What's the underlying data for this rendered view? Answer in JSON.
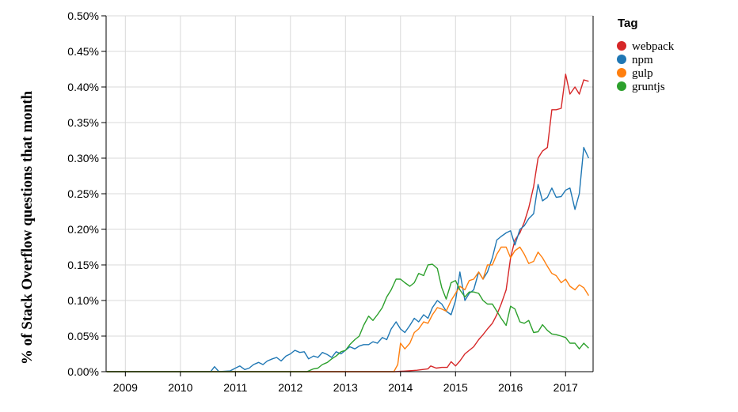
{
  "chart_data": {
    "type": "line",
    "ylabel": "% of Stack Overflow questions that month",
    "xlabel": "",
    "title": "",
    "legend_title": "Tag",
    "legend_position": "top-right",
    "grid": true,
    "xlim": [
      2008.65,
      2017.5
    ],
    "ylim": [
      0,
      0.5
    ],
    "x_ticks": [
      2009,
      2010,
      2011,
      2012,
      2013,
      2014,
      2015,
      2016,
      2017
    ],
    "x_tick_labels": [
      "2009",
      "2010",
      "2011",
      "2012",
      "2013",
      "2014",
      "2015",
      "2016",
      "2017"
    ],
    "y_ticks": [
      0,
      0.05,
      0.1,
      0.15,
      0.2,
      0.25,
      0.3,
      0.35,
      0.4,
      0.45,
      0.5
    ],
    "y_tick_labels": [
      "0.00%",
      "0.05%",
      "0.10%",
      "0.15%",
      "0.20%",
      "0.25%",
      "0.30%",
      "0.35%",
      "0.40%",
      "0.45%",
      "0.50%"
    ],
    "series": [
      {
        "name": "webpack",
        "color": "#d62728",
        "points": [
          [
            2008.66,
            0
          ],
          [
            2013.9,
            0
          ],
          [
            2014.3,
            0.002
          ],
          [
            2014.5,
            0.004
          ],
          [
            2014.55,
            0.008
          ],
          [
            2014.65,
            0.005
          ],
          [
            2014.75,
            0.006
          ],
          [
            2014.85,
            0.006
          ],
          [
            2014.92,
            0.014
          ],
          [
            2015.0,
            0.008
          ],
          [
            2015.08,
            0.015
          ],
          [
            2015.17,
            0.025
          ],
          [
            2015.25,
            0.03
          ],
          [
            2015.33,
            0.035
          ],
          [
            2015.42,
            0.045
          ],
          [
            2015.5,
            0.052
          ],
          [
            2015.58,
            0.06
          ],
          [
            2015.67,
            0.068
          ],
          [
            2015.75,
            0.08
          ],
          [
            2015.83,
            0.095
          ],
          [
            2015.92,
            0.115
          ],
          [
            2016.0,
            0.16
          ],
          [
            2016.08,
            0.185
          ],
          [
            2016.17,
            0.195
          ],
          [
            2016.25,
            0.21
          ],
          [
            2016.33,
            0.23
          ],
          [
            2016.42,
            0.26
          ],
          [
            2016.5,
            0.3
          ],
          [
            2016.58,
            0.31
          ],
          [
            2016.67,
            0.315
          ],
          [
            2016.75,
            0.368
          ],
          [
            2016.83,
            0.368
          ],
          [
            2016.92,
            0.37
          ],
          [
            2017.0,
            0.418
          ],
          [
            2017.08,
            0.39
          ],
          [
            2017.17,
            0.4
          ],
          [
            2017.25,
            0.39
          ],
          [
            2017.33,
            0.41
          ],
          [
            2017.42,
            0.408
          ]
        ]
      },
      {
        "name": "npm",
        "color": "#1f77b4",
        "points": [
          [
            2008.66,
            0
          ],
          [
            2010.55,
            0
          ],
          [
            2010.62,
            0.007
          ],
          [
            2010.7,
            0
          ],
          [
            2010.9,
            0.001
          ],
          [
            2011.0,
            0.005
          ],
          [
            2011.08,
            0.008
          ],
          [
            2011.17,
            0.003
          ],
          [
            2011.25,
            0.005
          ],
          [
            2011.33,
            0.01
          ],
          [
            2011.42,
            0.013
          ],
          [
            2011.5,
            0.01
          ],
          [
            2011.58,
            0.015
          ],
          [
            2011.67,
            0.018
          ],
          [
            2011.75,
            0.02
          ],
          [
            2011.83,
            0.015
          ],
          [
            2011.92,
            0.022
          ],
          [
            2012.0,
            0.025
          ],
          [
            2012.08,
            0.03
          ],
          [
            2012.17,
            0.027
          ],
          [
            2012.25,
            0.028
          ],
          [
            2012.33,
            0.018
          ],
          [
            2012.42,
            0.022
          ],
          [
            2012.5,
            0.02
          ],
          [
            2012.58,
            0.027
          ],
          [
            2012.67,
            0.024
          ],
          [
            2012.75,
            0.02
          ],
          [
            2012.83,
            0.028
          ],
          [
            2012.92,
            0.025
          ],
          [
            2013.0,
            0.03
          ],
          [
            2013.08,
            0.035
          ],
          [
            2013.17,
            0.032
          ],
          [
            2013.25,
            0.036
          ],
          [
            2013.33,
            0.038
          ],
          [
            2013.42,
            0.038
          ],
          [
            2013.5,
            0.042
          ],
          [
            2013.58,
            0.04
          ],
          [
            2013.67,
            0.048
          ],
          [
            2013.75,
            0.045
          ],
          [
            2013.83,
            0.06
          ],
          [
            2013.92,
            0.07
          ],
          [
            2014.0,
            0.06
          ],
          [
            2014.08,
            0.055
          ],
          [
            2014.17,
            0.065
          ],
          [
            2014.25,
            0.075
          ],
          [
            2014.33,
            0.07
          ],
          [
            2014.42,
            0.08
          ],
          [
            2014.5,
            0.075
          ],
          [
            2014.58,
            0.09
          ],
          [
            2014.67,
            0.1
          ],
          [
            2014.75,
            0.095
          ],
          [
            2014.83,
            0.085
          ],
          [
            2014.92,
            0.08
          ],
          [
            2015.0,
            0.1
          ],
          [
            2015.08,
            0.14
          ],
          [
            2015.17,
            0.1
          ],
          [
            2015.25,
            0.11
          ],
          [
            2015.33,
            0.115
          ],
          [
            2015.42,
            0.14
          ],
          [
            2015.5,
            0.13
          ],
          [
            2015.58,
            0.14
          ],
          [
            2015.67,
            0.16
          ],
          [
            2015.75,
            0.185
          ],
          [
            2015.83,
            0.19
          ],
          [
            2015.92,
            0.195
          ],
          [
            2016.0,
            0.198
          ],
          [
            2016.08,
            0.178
          ],
          [
            2016.17,
            0.2
          ],
          [
            2016.25,
            0.205
          ],
          [
            2016.33,
            0.215
          ],
          [
            2016.42,
            0.222
          ],
          [
            2016.5,
            0.263
          ],
          [
            2016.58,
            0.24
          ],
          [
            2016.67,
            0.245
          ],
          [
            2016.75,
            0.258
          ],
          [
            2016.83,
            0.245
          ],
          [
            2016.92,
            0.246
          ],
          [
            2017.0,
            0.255
          ],
          [
            2017.08,
            0.258
          ],
          [
            2017.17,
            0.228
          ],
          [
            2017.25,
            0.25
          ],
          [
            2017.33,
            0.315
          ],
          [
            2017.42,
            0.3
          ]
        ]
      },
      {
        "name": "gulp",
        "color": "#ff7f0e",
        "points": [
          [
            2008.66,
            0
          ],
          [
            2013.88,
            0
          ],
          [
            2013.95,
            0.01
          ],
          [
            2014.0,
            0.04
          ],
          [
            2014.08,
            0.032
          ],
          [
            2014.17,
            0.04
          ],
          [
            2014.25,
            0.055
          ],
          [
            2014.33,
            0.06
          ],
          [
            2014.42,
            0.07
          ],
          [
            2014.5,
            0.068
          ],
          [
            2014.58,
            0.08
          ],
          [
            2014.67,
            0.09
          ],
          [
            2014.75,
            0.088
          ],
          [
            2014.83,
            0.085
          ],
          [
            2014.92,
            0.1
          ],
          [
            2015.0,
            0.11
          ],
          [
            2015.08,
            0.12
          ],
          [
            2015.17,
            0.115
          ],
          [
            2015.25,
            0.128
          ],
          [
            2015.33,
            0.13
          ],
          [
            2015.42,
            0.14
          ],
          [
            2015.5,
            0.13
          ],
          [
            2015.58,
            0.15
          ],
          [
            2015.67,
            0.15
          ],
          [
            2015.75,
            0.165
          ],
          [
            2015.83,
            0.175
          ],
          [
            2015.92,
            0.175
          ],
          [
            2016.0,
            0.16
          ],
          [
            2016.08,
            0.17
          ],
          [
            2016.17,
            0.175
          ],
          [
            2016.25,
            0.165
          ],
          [
            2016.33,
            0.152
          ],
          [
            2016.42,
            0.155
          ],
          [
            2016.5,
            0.168
          ],
          [
            2016.58,
            0.16
          ],
          [
            2016.67,
            0.148
          ],
          [
            2016.75,
            0.138
          ],
          [
            2016.83,
            0.135
          ],
          [
            2016.92,
            0.125
          ],
          [
            2017.0,
            0.13
          ],
          [
            2017.08,
            0.12
          ],
          [
            2017.17,
            0.115
          ],
          [
            2017.25,
            0.122
          ],
          [
            2017.33,
            0.118
          ],
          [
            2017.42,
            0.107
          ]
        ]
      },
      {
        "name": "gruntjs",
        "color": "#2ca02c",
        "points": [
          [
            2008.66,
            0
          ],
          [
            2012.3,
            0
          ],
          [
            2012.42,
            0.004
          ],
          [
            2012.5,
            0.005
          ],
          [
            2012.58,
            0.01
          ],
          [
            2012.67,
            0.013
          ],
          [
            2012.75,
            0.018
          ],
          [
            2012.83,
            0.022
          ],
          [
            2012.92,
            0.028
          ],
          [
            2013.0,
            0.03
          ],
          [
            2013.08,
            0.038
          ],
          [
            2013.17,
            0.045
          ],
          [
            2013.25,
            0.05
          ],
          [
            2013.33,
            0.065
          ],
          [
            2013.42,
            0.078
          ],
          [
            2013.5,
            0.072
          ],
          [
            2013.58,
            0.08
          ],
          [
            2013.67,
            0.09
          ],
          [
            2013.75,
            0.105
          ],
          [
            2013.83,
            0.115
          ],
          [
            2013.92,
            0.13
          ],
          [
            2014.0,
            0.13
          ],
          [
            2014.08,
            0.125
          ],
          [
            2014.17,
            0.12
          ],
          [
            2014.25,
            0.125
          ],
          [
            2014.33,
            0.138
          ],
          [
            2014.42,
            0.135
          ],
          [
            2014.5,
            0.15
          ],
          [
            2014.58,
            0.151
          ],
          [
            2014.67,
            0.145
          ],
          [
            2014.75,
            0.118
          ],
          [
            2014.83,
            0.102
          ],
          [
            2014.92,
            0.125
          ],
          [
            2015.0,
            0.128
          ],
          [
            2015.08,
            0.115
          ],
          [
            2015.17,
            0.105
          ],
          [
            2015.25,
            0.112
          ],
          [
            2015.33,
            0.112
          ],
          [
            2015.42,
            0.11
          ],
          [
            2015.5,
            0.1
          ],
          [
            2015.58,
            0.095
          ],
          [
            2015.67,
            0.095
          ],
          [
            2015.75,
            0.085
          ],
          [
            2015.83,
            0.075
          ],
          [
            2015.92,
            0.065
          ],
          [
            2016.0,
            0.092
          ],
          [
            2016.08,
            0.088
          ],
          [
            2016.17,
            0.07
          ],
          [
            2016.25,
            0.068
          ],
          [
            2016.33,
            0.072
          ],
          [
            2016.42,
            0.055
          ],
          [
            2016.5,
            0.056
          ],
          [
            2016.58,
            0.066
          ],
          [
            2016.67,
            0.058
          ],
          [
            2016.75,
            0.053
          ],
          [
            2016.83,
            0.052
          ],
          [
            2016.92,
            0.05
          ],
          [
            2017.0,
            0.048
          ],
          [
            2017.08,
            0.04
          ],
          [
            2017.17,
            0.04
          ],
          [
            2017.25,
            0.032
          ],
          [
            2017.33,
            0.04
          ],
          [
            2017.42,
            0.033
          ]
        ]
      }
    ]
  }
}
